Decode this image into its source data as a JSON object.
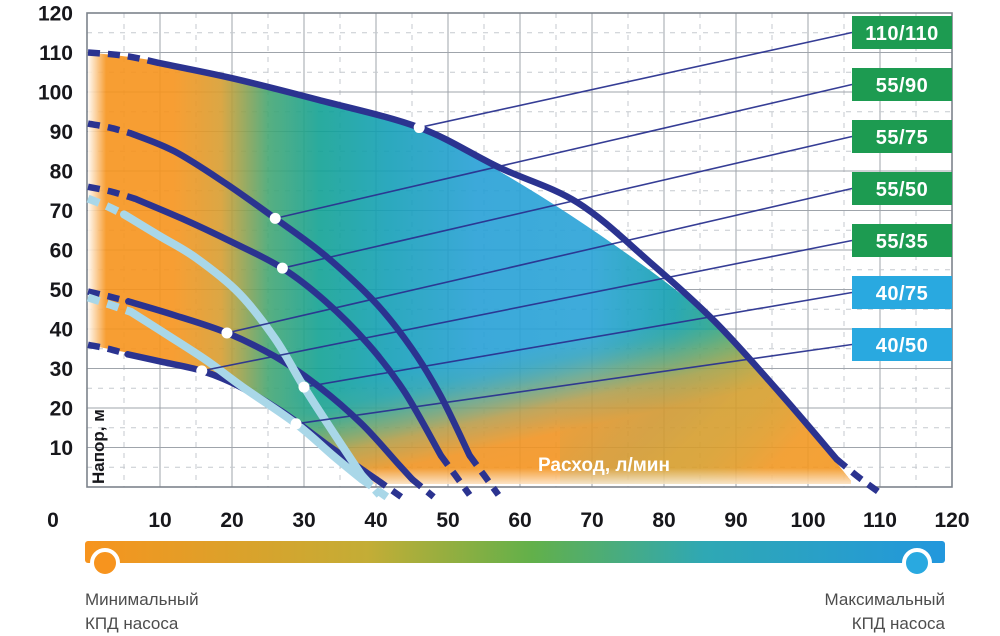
{
  "chart_data": {
    "type": "line",
    "title": "",
    "xlabel": "Расход, л/мин",
    "ylabel": "Напор, м",
    "xlim": [
      0,
      120
    ],
    "ylim": [
      0,
      120
    ],
    "x_ticks": [
      0,
      10,
      20,
      30,
      40,
      50,
      60,
      70,
      80,
      90,
      100,
      110,
      120
    ],
    "y_ticks": [
      120,
      110,
      100,
      90,
      80,
      70,
      60,
      50,
      40,
      30,
      20,
      10
    ],
    "minor_step": 5,
    "grid": true,
    "legend_position": "right",
    "series": [
      {
        "name": "110/110",
        "color": "#2b3390",
        "stroke_width": 6.5,
        "callout_point": [
          46,
          91
        ],
        "segments": [
          {
            "style": "dashed",
            "points": [
              [
                0,
                110
              ],
              [
                5,
                109.2
              ],
              [
                10,
                107.3
              ]
            ]
          },
          {
            "style": "solid",
            "points": [
              [
                10,
                107.3
              ],
              [
                20,
                103.5
              ],
              [
                32,
                98
              ],
              [
                46,
                91
              ],
              [
                57,
                81
              ],
              [
                68,
                72
              ],
              [
                78,
                57
              ],
              [
                87,
                42
              ],
              [
                96,
                24
              ],
              [
                104,
                7
              ]
            ]
          },
          {
            "style": "dashed",
            "points": [
              [
                104,
                7
              ],
              [
                107,
                2.5
              ],
              [
                110,
                -1.5
              ]
            ]
          }
        ]
      },
      {
        "name": "55/90",
        "color": "#2b3390",
        "stroke_width": 6.5,
        "callout_point": [
          26,
          68
        ],
        "segments": [
          {
            "style": "dashed",
            "points": [
              [
                0,
                92
              ],
              [
                3,
                91
              ],
              [
                6,
                89.5
              ]
            ]
          },
          {
            "style": "solid",
            "points": [
              [
                6,
                89.5
              ],
              [
                12,
                85
              ],
              [
                19,
                77
              ],
              [
                26,
                68
              ],
              [
                33,
                58.5
              ],
              [
                40,
                46.5
              ],
              [
                45,
                35
              ],
              [
                49,
                23
              ],
              [
                53,
                8
              ]
            ]
          },
          {
            "style": "dashed",
            "points": [
              [
                53,
                8
              ],
              [
                55,
                3
              ],
              [
                57,
                -2
              ]
            ]
          }
        ]
      },
      {
        "name": "55/75",
        "color": "#2b3390",
        "stroke_width": 6.5,
        "callout_point": [
          27,
          55.4
        ],
        "segments": [
          {
            "style": "dashed",
            "points": [
              [
                0,
                76
              ],
              [
                3.2,
                74.8
              ],
              [
                6.5,
                73
              ]
            ]
          },
          {
            "style": "solid",
            "points": [
              [
                6.5,
                73
              ],
              [
                13,
                68
              ],
              [
                20,
                62
              ],
              [
                27,
                55.4
              ],
              [
                33,
                47
              ],
              [
                39,
                36
              ],
              [
                44,
                24
              ],
              [
                49,
                8
              ]
            ]
          },
          {
            "style": "dashed",
            "points": [
              [
                49,
                8
              ],
              [
                51,
                3
              ],
              [
                53,
                -2
              ]
            ]
          }
        ]
      },
      {
        "name": "55/50",
        "color": "#2b3390",
        "stroke_width": 6.5,
        "callout_point": [
          19.3,
          39
        ],
        "segments": [
          {
            "style": "dashed",
            "points": [
              [
                0,
                49.5
              ],
              [
                2.8,
                48.3
              ],
              [
                5.6,
                47
              ]
            ]
          },
          {
            "style": "solid",
            "points": [
              [
                5.6,
                47
              ],
              [
                12,
                43.5
              ],
              [
                19.3,
                39
              ],
              [
                26,
                33
              ],
              [
                32,
                25.5
              ],
              [
                38,
                16
              ],
              [
                43,
                6
              ],
              [
                45,
                2
              ]
            ]
          },
          {
            "style": "dashed",
            "points": [
              [
                45,
                2
              ],
              [
                48,
                -2.5
              ]
            ]
          }
        ]
      },
      {
        "name": "55/35",
        "color": "#2b3390",
        "stroke_width": 6.5,
        "callout_point": [
          15.8,
          29.4
        ],
        "segments": [
          {
            "style": "dashed",
            "points": [
              [
                0,
                36
              ],
              [
                2.8,
                35
              ],
              [
                5.5,
                33.6
              ]
            ]
          },
          {
            "style": "solid",
            "points": [
              [
                5.5,
                33.6
              ],
              [
                10.5,
                31.6
              ],
              [
                15.8,
                29.4
              ],
              [
                21,
                25.5
              ],
              [
                27,
                19
              ],
              [
                33,
                11
              ],
              [
                38,
                4.5
              ],
              [
                40,
                2
              ]
            ]
          },
          {
            "style": "dashed",
            "points": [
              [
                40,
                2
              ],
              [
                43.5,
                -2.5
              ]
            ]
          }
        ]
      },
      {
        "name": "40/75",
        "color": "#a9d7e8",
        "stroke_width": 8,
        "callout_point": [
          30,
          25.3
        ],
        "segments": [
          {
            "style": "dashed",
            "points": [
              [
                0,
                73
              ],
              [
                2.5,
                71.2
              ],
              [
                5,
                69
              ]
            ]
          },
          {
            "style": "solid",
            "points": [
              [
                5,
                69
              ],
              [
                10,
                63.5
              ],
              [
                15,
                58
              ],
              [
                21,
                49
              ],
              [
                26,
                37.5
              ],
              [
                30,
                25.3
              ],
              [
                34,
                14
              ],
              [
                38,
                3
              ]
            ]
          },
          {
            "style": "dashed",
            "points": [
              [
                38,
                3
              ],
              [
                40.5,
                -2
              ]
            ]
          }
        ]
      },
      {
        "name": "40/50",
        "color": "#a9d7e8",
        "stroke_width": 8,
        "callout_point": [
          28.9,
          16
        ],
        "segments": [
          {
            "style": "dashed",
            "points": [
              [
                0,
                48
              ],
              [
                3,
                46.2
              ],
              [
                6,
                44.3
              ]
            ]
          },
          {
            "style": "solid",
            "points": [
              [
                6,
                44.3
              ],
              [
                11,
                38.5
              ],
              [
                16.5,
                32
              ],
              [
                21.5,
                25.3
              ],
              [
                28.9,
                16
              ],
              [
                34,
                8
              ],
              [
                38,
                2
              ]
            ]
          },
          {
            "style": "dashed",
            "points": [
              [
                38,
                2
              ],
              [
                41.5,
                -2.5
              ]
            ]
          }
        ]
      }
    ]
  },
  "badges": [
    {
      "label": "110/110",
      "color": "#1d9b51"
    },
    {
      "label": "55/90",
      "color": "#1d9b51"
    },
    {
      "label": "55/75",
      "color": "#1d9b51"
    },
    {
      "label": "55/50",
      "color": "#1d9b51"
    },
    {
      "label": "55/35",
      "color": "#1d9b51"
    },
    {
      "label": "40/75",
      "color": "#29a9e0"
    },
    {
      "label": "40/50",
      "color": "#29a9e0"
    }
  ],
  "legend": {
    "min_line1": "Минимальный",
    "min_line2": "КПД насоса",
    "max_line1": "Максимальный",
    "max_line2": "КПД насоса",
    "min_color": "#f7941e",
    "max_color": "#29a9e0",
    "gradient": [
      "#f7941e",
      "#c3ad36",
      "#62b04a",
      "#2fa8b4",
      "#2297dd"
    ]
  },
  "colors": {
    "curve_navy": "#2b3390",
    "curve_light_blue": "#a9d7e8",
    "badge_green": "#1d9b51",
    "badge_blue": "#29a9e0",
    "efficiency_low": "#f7941e",
    "efficiency_high": "#2aa3d8"
  }
}
